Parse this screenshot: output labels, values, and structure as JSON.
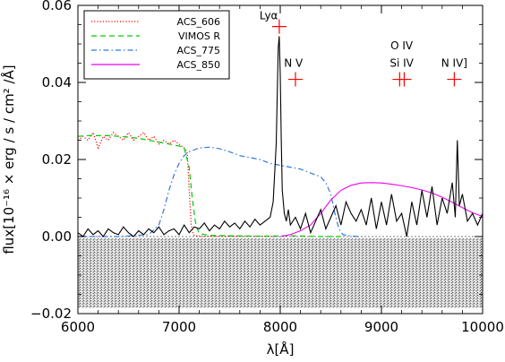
{
  "chart_data": {
    "type": "line",
    "xlabel": "λ[Å]",
    "ylabel": "flux[10⁻¹⁶ × erg / s / cm² /Å]",
    "xlim": [
      6000,
      10000
    ],
    "ylim": [
      -0.02,
      0.06
    ],
    "x_ticks": [
      6000,
      7000,
      8000,
      9000,
      10000
    ],
    "x_tick_labels": [
      "6000",
      "7000",
      "8000",
      "9000",
      "10000"
    ],
    "y_ticks": [
      -0.02,
      0.0,
      0.02,
      0.04,
      0.06
    ],
    "y_tick_labels": [
      "−0.02",
      "0.00",
      "0.02",
      "0.04",
      "0.06"
    ],
    "legend_position": "top-left",
    "series": [
      {
        "name": "ACS_606",
        "color": "#ff0000",
        "style": "dotted",
        "x": [
          6000,
          6050,
          6100,
          6150,
          6200,
          6250,
          6300,
          6350,
          6400,
          6450,
          6500,
          6550,
          6600,
          6650,
          6700,
          6750,
          6800,
          6850,
          6900,
          6950,
          7000,
          7050,
          7080,
          7100,
          7120,
          7140,
          7160,
          7200,
          7300,
          7400,
          7600,
          7800,
          7950
        ],
        "y": [
          0.025,
          0.026,
          0.025,
          0.027,
          0.023,
          0.026,
          0.025,
          0.027,
          0.026,
          0.025,
          0.027,
          0.025,
          0.026,
          0.027,
          0.025,
          0.026,
          0.024,
          0.025,
          0.024,
          0.025,
          0.024,
          0.023,
          0.022,
          0.012,
          0.003,
          0.0005,
          0.0002,
          0.0001,
          0.0001,
          0.0001,
          0.0001,
          0.0001,
          0.0
        ]
      },
      {
        "name": "VIMOS R",
        "color": "#00cc00",
        "style": "dashed",
        "x": [
          6000,
          6100,
          6200,
          6300,
          6400,
          6500,
          6600,
          6700,
          6800,
          6900,
          7000,
          7050,
          7100,
          7130,
          7160,
          7180,
          7200,
          7300,
          7500,
          7800,
          8100,
          8400,
          8600
        ],
        "y": [
          0.026,
          0.0262,
          0.0262,
          0.0262,
          0.026,
          0.0258,
          0.0255,
          0.025,
          0.0245,
          0.024,
          0.0235,
          0.023,
          0.018,
          0.01,
          0.004,
          0.002,
          0.0008,
          0.0003,
          0.0002,
          0.0001,
          0.0002,
          0.0,
          0.0
        ]
      },
      {
        "name": "ACS_775",
        "color": "#3377dd",
        "style": "dashdot",
        "x": [
          6000,
          6400,
          6700,
          6800,
          6850,
          6900,
          6950,
          7000,
          7050,
          7100,
          7150,
          7200,
          7300,
          7400,
          7500,
          7600,
          7700,
          7800,
          7900,
          8000,
          8100,
          8200,
          8300,
          8400,
          8450,
          8500,
          8540,
          8580,
          8620,
          8700,
          8800
        ],
        "y": [
          0.0,
          0.0,
          0.0005,
          0.003,
          0.007,
          0.012,
          0.016,
          0.019,
          0.021,
          0.022,
          0.0225,
          0.023,
          0.0232,
          0.0228,
          0.022,
          0.021,
          0.0205,
          0.02,
          0.019,
          0.0185,
          0.018,
          0.0175,
          0.0165,
          0.0155,
          0.014,
          0.011,
          0.006,
          0.002,
          0.0005,
          0.0001,
          0.0
        ]
      },
      {
        "name": "ACS_850",
        "color": "#ee00ee",
        "style": "solid",
        "x": [
          8000,
          8100,
          8200,
          8300,
          8400,
          8500,
          8600,
          8700,
          8800,
          8900,
          9000,
          9100,
          9200,
          9300,
          9400,
          9500,
          9600,
          9700,
          9800,
          9900,
          10000
        ],
        "y": [
          0.0,
          0.0005,
          0.0015,
          0.003,
          0.006,
          0.0095,
          0.012,
          0.0133,
          0.0139,
          0.014,
          0.0139,
          0.0136,
          0.0132,
          0.0127,
          0.0121,
          0.0113,
          0.0102,
          0.0089,
          0.0075,
          0.0062,
          0.0052
        ]
      },
      {
        "name": "",
        "color": "#000000",
        "style": "solid",
        "x": [
          6000,
          6050,
          6100,
          6150,
          6200,
          6250,
          6300,
          6350,
          6400,
          6450,
          6500,
          6550,
          6600,
          6650,
          6700,
          6750,
          6800,
          6850,
          6900,
          6950,
          7000,
          7050,
          7100,
          7150,
          7200,
          7250,
          7300,
          7350,
          7400,
          7450,
          7500,
          7550,
          7600,
          7650,
          7700,
          7750,
          7800,
          7850,
          7900,
          7930,
          7960,
          7980,
          7990,
          8000,
          8010,
          8020,
          8040,
          8060,
          8080,
          8100,
          8150,
          8200,
          8250,
          8300,
          8350,
          8400,
          8450,
          8500,
          8550,
          8600,
          8650,
          8700,
          8750,
          8800,
          8850,
          8900,
          8950,
          9000,
          9050,
          9100,
          9150,
          9200,
          9250,
          9300,
          9350,
          9400,
          9450,
          9500,
          9550,
          9600,
          9650,
          9700,
          9730,
          9750,
          9770,
          9800,
          9850,
          9900,
          9950,
          10000
        ],
        "y": [
          0.001,
          0.0,
          0.002,
          0.0005,
          0.0015,
          0.0,
          0.002,
          0.001,
          0.0005,
          0.0025,
          0.001,
          0.0,
          0.0015,
          0.0005,
          0.002,
          0.001,
          0.0025,
          0.0005,
          0.0015,
          0.002,
          0.0005,
          0.003,
          0.001,
          0.0025,
          0.002,
          0.0035,
          0.0015,
          0.003,
          0.002,
          0.004,
          0.0025,
          0.0035,
          0.002,
          0.004,
          0.0025,
          0.0045,
          0.003,
          0.004,
          0.005,
          0.009,
          0.024,
          0.049,
          0.052,
          0.042,
          0.025,
          0.012,
          0.006,
          0.004,
          0.007,
          0.003,
          0.005,
          0.002,
          0.006,
          0.001,
          0.004,
          0.007,
          0.002,
          0.005,
          0.008,
          0.003,
          0.009,
          0.006,
          0.004,
          0.007,
          0.003,
          0.01,
          0.002,
          0.009,
          0.003,
          0.011,
          0.004,
          0.006,
          0.0,
          0.009,
          0.003,
          0.012,
          0.005,
          0.013,
          0.003,
          0.01,
          0.006,
          0.014,
          0.005,
          0.025,
          0.008,
          0.011,
          0.004,
          0.006,
          0.003,
          0.006
        ]
      }
    ],
    "annotations": [
      {
        "text": "Lyα",
        "x": 7990,
        "y": 0.0545
      },
      {
        "text": "N V",
        "x": 8130,
        "y": 0.0422
      },
      {
        "text": "O IV",
        "x": 9200,
        "y": 0.0468
      },
      {
        "text": "Si IV",
        "x": 9200,
        "y": 0.0422
      },
      {
        "text": "N IV]",
        "x": 9720,
        "y": 0.0422
      }
    ],
    "markers": [
      {
        "x": 7990,
        "y": 0.0545
      },
      {
        "x": 8150,
        "y": 0.0408
      },
      {
        "x": 9180,
        "y": 0.0408
      },
      {
        "x": 9225,
        "y": 0.0408
      },
      {
        "x": 9720,
        "y": 0.0408
      }
    ],
    "spectrum_2d_yrange": [
      -0.0185,
      -0.0005
    ]
  }
}
